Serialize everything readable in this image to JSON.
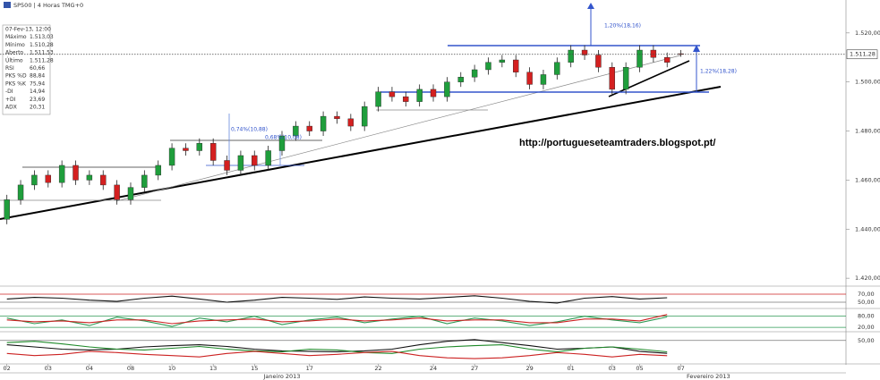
{
  "header": {
    "title": "SP500 | 4 Horas TMG+0"
  },
  "info": {
    "rows": [
      {
        "label": "07-Fev-13, 12:00",
        "value": null,
        "color": "#333"
      },
      {
        "label": "Máximo",
        "value": "1.513,03",
        "color": "#333"
      },
      {
        "label": "Mínimo",
        "value": "1.510,28",
        "color": "#333"
      },
      {
        "label": "Aberto",
        "value": "1.511,53",
        "color": "#333"
      },
      {
        "label": "Último",
        "value": "1.511,28",
        "color": "#333"
      },
      {
        "label": "RSI",
        "value": "60,66",
        "color": "#333"
      },
      {
        "label": "PKS %D",
        "value": "88,84",
        "color": "#cc2222"
      },
      {
        "label": "PKS %K",
        "value": "75,94",
        "color": "#339966"
      },
      {
        "label": "-DI",
        "value": "14,94",
        "color": "#cc2222"
      },
      {
        "label": "+DI",
        "value": "23,69",
        "color": "#228822"
      },
      {
        "label": "ADX",
        "value": "20,31",
        "color": "#333"
      }
    ]
  },
  "chart_data": [
    {
      "type": "candlestick",
      "up_color": "#1f9e3c",
      "down_color": "#d42020",
      "open": [
        1444,
        1452,
        1458,
        1462,
        1459,
        1466,
        1460,
        1462,
        1458,
        1452,
        1457,
        1462,
        1466,
        1473,
        1472,
        1475,
        1468,
        1464,
        1470,
        1466,
        1472,
        1478,
        1482,
        1480,
        1486,
        1485,
        1482,
        1490,
        1496,
        1494,
        1492,
        1497,
        1494,
        1500,
        1502,
        1505,
        1508,
        1509,
        1504,
        1499,
        1503,
        1508,
        1513,
        1511,
        1506,
        1497,
        1506,
        1513,
        1510,
        1511.53
      ],
      "high": [
        1454,
        1460,
        1464,
        1464,
        1468,
        1468,
        1464,
        1464,
        1460,
        1459,
        1464,
        1468,
        1475,
        1475,
        1477,
        1477,
        1470,
        1472,
        1472,
        1474,
        1480,
        1484,
        1484,
        1488,
        1488,
        1487,
        1492,
        1498,
        1498,
        1496,
        1499,
        1499,
        1502,
        1504,
        1507,
        1510,
        1511,
        1511,
        1506,
        1505,
        1510,
        1515,
        1515,
        1513,
        1508,
        1508,
        1515,
        1515,
        1512,
        1513.03
      ],
      "low": [
        1442,
        1450,
        1456,
        1457,
        1457,
        1458,
        1458,
        1456,
        1450,
        1450,
        1455,
        1460,
        1464,
        1470,
        1470,
        1466,
        1462,
        1462,
        1464,
        1464,
        1470,
        1476,
        1478,
        1478,
        1483,
        1480,
        1480,
        1488,
        1492,
        1490,
        1490,
        1492,
        1492,
        1498,
        1500,
        1503,
        1506,
        1502,
        1497,
        1497,
        1501,
        1506,
        1509,
        1504,
        1495,
        1495,
        1504,
        1508,
        1506,
        1510.28
      ],
      "close": [
        1452,
        1458,
        1462,
        1459,
        1466,
        1460,
        1462,
        1458,
        1452,
        1457,
        1462,
        1466,
        1473,
        1472,
        1475,
        1468,
        1464,
        1470,
        1466,
        1472,
        1478,
        1482,
        1480,
        1486,
        1485,
        1482,
        1490,
        1496,
        1494,
        1492,
        1497,
        1494,
        1500,
        1502,
        1505,
        1508,
        1509,
        1504,
        1499,
        1503,
        1508,
        1513,
        1511,
        1506,
        1497,
        1506,
        1513,
        1510,
        1508,
        1511.28
      ],
      "ylim": [
        1417.5,
        1531.6
      ],
      "yticks": [
        {
          "value": 1420,
          "label": "1.420,00"
        },
        {
          "value": 1440,
          "label": "1.440,00"
        },
        {
          "value": 1460,
          "label": "1.460,00"
        },
        {
          "value": 1480,
          "label": "1.480,00"
        },
        {
          "value": 1500,
          "label": "1.500,00"
        },
        {
          "value": 1520,
          "label": "1.520,00"
        }
      ],
      "last_price": {
        "value": 1511.28,
        "label": "1.511,28"
      },
      "xlim": [
        -0.5,
        61
      ],
      "xticks": [
        {
          "value": 0,
          "label": "02"
        },
        {
          "value": 3,
          "label": "03"
        },
        {
          "value": 6,
          "label": "04"
        },
        {
          "value": 9,
          "label": "08"
        },
        {
          "value": 12,
          "label": "10"
        },
        {
          "value": 15,
          "label": "13"
        },
        {
          "value": 18,
          "label": "15"
        },
        {
          "value": 22,
          "label": "17"
        },
        {
          "value": 27,
          "label": "22"
        },
        {
          "value": 31,
          "label": "24"
        },
        {
          "value": 34,
          "label": "27"
        },
        {
          "value": 38,
          "label": "29"
        },
        {
          "value": 41,
          "label": "01"
        },
        {
          "value": 44,
          "label": "03"
        },
        {
          "value": 46,
          "label": "05"
        },
        {
          "value": 49,
          "label": "07"
        }
      ],
      "periods": [
        {
          "value": 20,
          "label": "Janeiro 2013"
        },
        {
          "value": 51,
          "label": "Fevereiro 2013"
        }
      ],
      "annotations": [
        "1,20%(18,16)",
        "1,22%(18,28)",
        "0,74%(10,88)",
        "0,68%(10,08)",
        "http://portugueseteamtraders.blogspot.pt/"
      ]
    },
    {
      "type": "line",
      "x": [
        0,
        2,
        4,
        6,
        8,
        10,
        12,
        14,
        16,
        18,
        20,
        22,
        24,
        26,
        28,
        30,
        32,
        34,
        36,
        38,
        40,
        42,
        44,
        46,
        48
      ],
      "series": [
        {
          "name": "RSI",
          "color": "#111",
          "values": [
            58,
            62,
            60,
            55,
            52,
            60,
            65,
            58,
            50,
            55,
            62,
            60,
            57,
            63,
            60,
            58,
            62,
            66,
            60,
            52,
            48,
            60,
            64,
            58,
            61
          ]
        }
      ],
      "ylim": [
        38.9,
        83.3
      ],
      "yticks": [
        {
          "value": 50,
          "label": "50,00"
        },
        {
          "value": 70,
          "label": "70,00"
        }
      ],
      "level_colors": [
        "#777",
        "#cc2222"
      ]
    },
    {
      "type": "line",
      "x": [
        0,
        2,
        4,
        6,
        8,
        10,
        12,
        14,
        16,
        18,
        20,
        22,
        24,
        26,
        28,
        30,
        32,
        34,
        36,
        38,
        40,
        42,
        44,
        46,
        48
      ],
      "series": [
        {
          "name": "PKS %K",
          "color": "#2e9a55",
          "values": [
            70,
            40,
            60,
            30,
            75,
            55,
            25,
            70,
            50,
            80,
            35,
            60,
            75,
            45,
            65,
            80,
            40,
            70,
            55,
            30,
            50,
            80,
            60,
            45,
            75.94
          ]
        },
        {
          "name": "PKS %D",
          "color": "#cc2222",
          "values": [
            60,
            50,
            55,
            45,
            60,
            60,
            40,
            55,
            60,
            65,
            50,
            55,
            65,
            55,
            60,
            70,
            55,
            60,
            60,
            45,
            45,
            65,
            65,
            55,
            88.84
          ]
        }
      ],
      "ylim": [
        1.5,
        112
      ],
      "yticks": [
        {
          "value": 20,
          "label": "20,00"
        },
        {
          "value": 80,
          "label": "80,00"
        }
      ],
      "level_colors": [
        "#2e9a55",
        "#2e9a55"
      ]
    },
    {
      "type": "line",
      "x": [
        0,
        2,
        4,
        6,
        8,
        10,
        12,
        14,
        16,
        18,
        20,
        22,
        24,
        26,
        28,
        30,
        32,
        34,
        36,
        38,
        40,
        42,
        44,
        46,
        48
      ],
      "series": [
        {
          "name": "ADX",
          "color": "#111",
          "values": [
            40,
            35,
            30,
            28,
            30,
            35,
            38,
            40,
            36,
            30,
            26,
            25,
            24,
            26,
            30,
            40,
            48,
            52,
            45,
            38,
            30,
            32,
            35,
            25,
            20.31
          ]
        },
        {
          "name": "+DI",
          "color": "#1f8a2a",
          "values": [
            45,
            48,
            42,
            35,
            30,
            28,
            32,
            36,
            30,
            26,
            24,
            30,
            28,
            22,
            20,
            30,
            35,
            38,
            40,
            30,
            24,
            32,
            35,
            30,
            23.69
          ]
        },
        {
          "name": "-DI",
          "color": "#cc2222",
          "values": [
            20,
            15,
            18,
            25,
            22,
            18,
            15,
            12,
            20,
            25,
            20,
            15,
            18,
            22,
            25,
            15,
            10,
            8,
            10,
            15,
            22,
            18,
            12,
            18,
            14.94
          ]
        }
      ],
      "ylim": [
        0,
        66
      ],
      "yticks": [
        {
          "value": 50,
          "label": "50,00"
        }
      ],
      "level_colors": [
        "#777"
      ]
    }
  ]
}
